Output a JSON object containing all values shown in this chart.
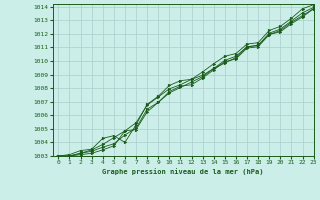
{
  "title": "Graphe pression niveau de la mer (hPa)",
  "background_color": "#cceee8",
  "grid_color": "#aacccc",
  "line_color": "#1a5c1a",
  "xlim": [
    -0.5,
    23
  ],
  "ylim": [
    1003,
    1014.2
  ],
  "xticks": [
    0,
    1,
    2,
    3,
    4,
    5,
    6,
    7,
    8,
    9,
    10,
    11,
    12,
    13,
    14,
    15,
    16,
    17,
    18,
    19,
    20,
    21,
    22,
    23
  ],
  "yticks": [
    1003,
    1004,
    1005,
    1006,
    1007,
    1008,
    1009,
    1010,
    1011,
    1012,
    1013,
    1014
  ],
  "series": [
    [
      1003.0,
      1003.1,
      1003.4,
      1003.5,
      1004.3,
      1004.5,
      1004.0,
      1005.3,
      1006.8,
      1007.4,
      1008.2,
      1008.55,
      1008.65,
      1009.2,
      1009.8,
      1010.35,
      1010.55,
      1011.25,
      1011.35,
      1012.25,
      1012.55,
      1013.15,
      1013.85,
      1014.15
    ],
    [
      1003.0,
      1003.0,
      1003.2,
      1003.35,
      1003.65,
      1003.9,
      1004.55,
      1005.05,
      1006.45,
      1006.95,
      1007.75,
      1008.15,
      1008.25,
      1008.75,
      1009.35,
      1009.95,
      1010.15,
      1010.95,
      1011.05,
      1011.95,
      1012.25,
      1012.85,
      1013.35,
      1013.85
    ],
    [
      1003.0,
      1003.0,
      1003.2,
      1003.45,
      1003.85,
      1004.35,
      1004.85,
      1005.45,
      1006.75,
      1007.35,
      1007.95,
      1008.25,
      1008.65,
      1008.95,
      1009.45,
      1010.05,
      1010.35,
      1011.05,
      1011.15,
      1012.05,
      1012.35,
      1012.95,
      1013.55,
      1013.95
    ],
    [
      1003.0,
      1003.0,
      1003.1,
      1003.2,
      1003.45,
      1003.75,
      1004.85,
      1004.95,
      1006.25,
      1006.95,
      1007.65,
      1008.05,
      1008.45,
      1008.85,
      1009.45,
      1009.85,
      1010.25,
      1011.05,
      1011.15,
      1011.95,
      1012.15,
      1012.75,
      1013.25,
      1013.85
    ]
  ]
}
